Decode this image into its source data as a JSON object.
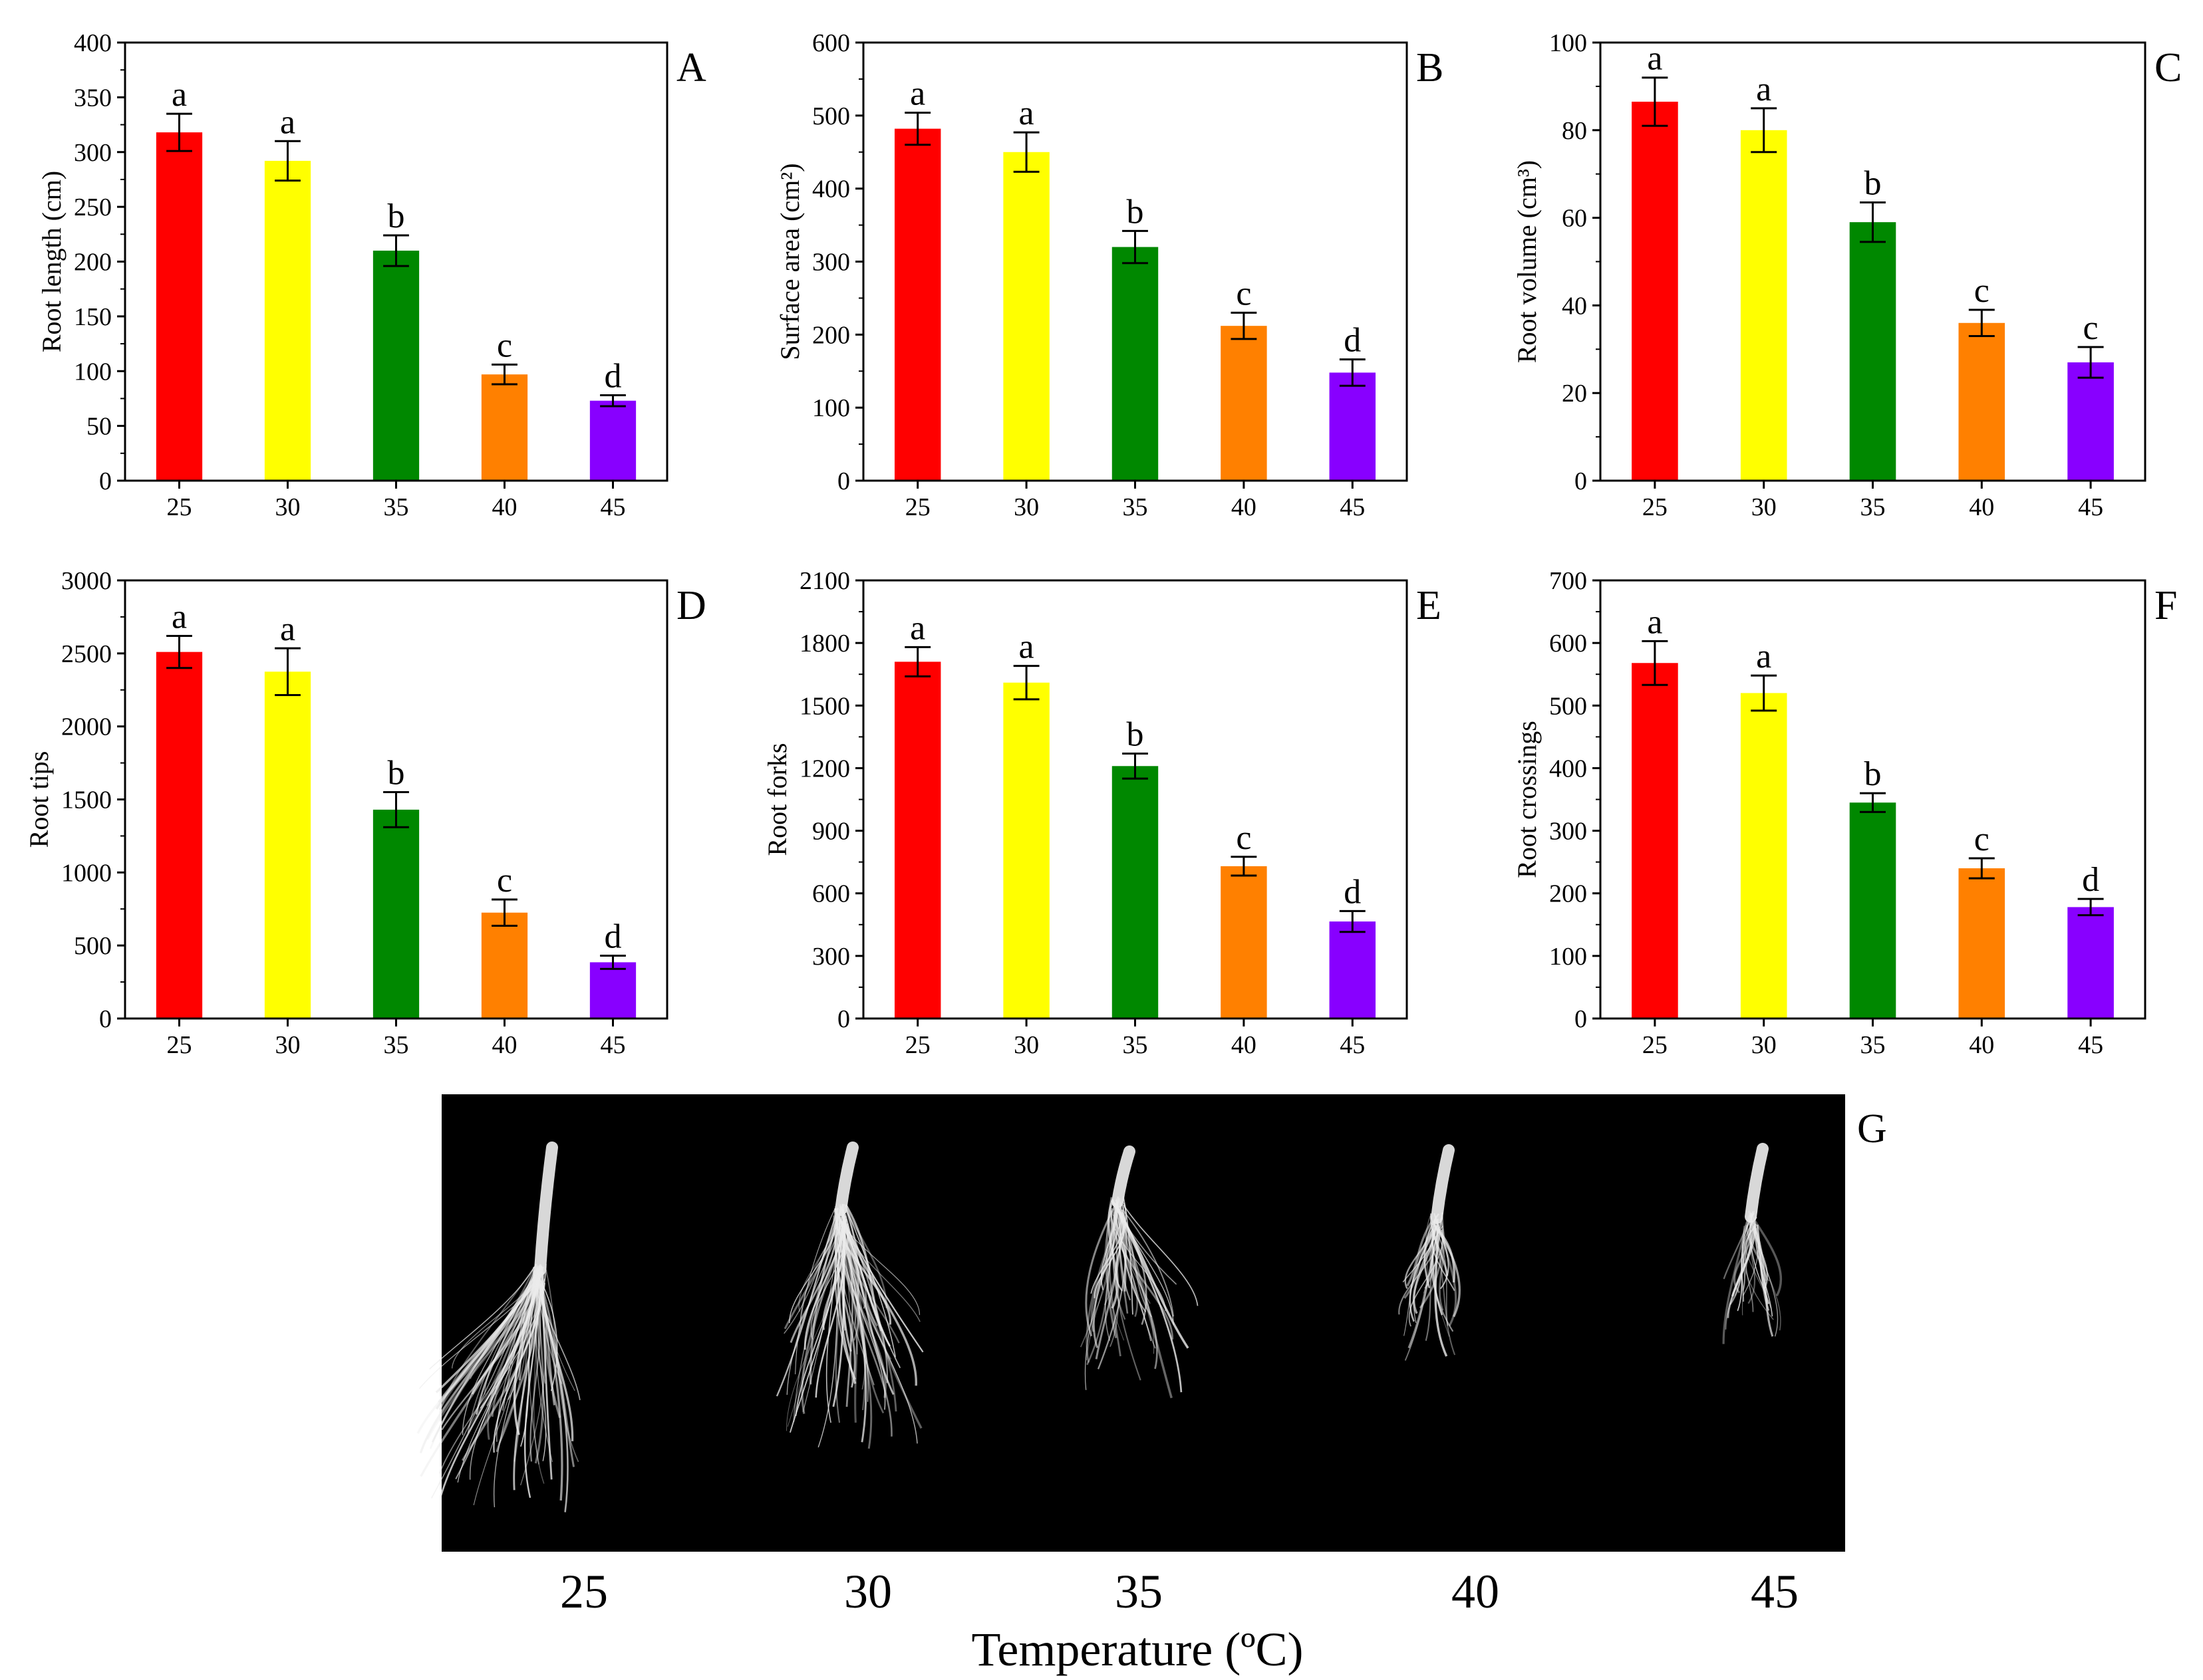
{
  "colors": [
    "#ff0000",
    "#ffff00",
    "#008800",
    "#ff8000",
    "#8800ff"
  ],
  "chart_data": [
    {
      "type": "bar",
      "panel": "A",
      "categories": [
        "25",
        "30",
        "35",
        "40",
        "45"
      ],
      "values": [
        318,
        292,
        210,
        97,
        73
      ],
      "errors": [
        17,
        18,
        14,
        9,
        5
      ],
      "letters": [
        "a",
        "a",
        "b",
        "c",
        "d"
      ],
      "ylabel": "Root length (cm)",
      "ylim": [
        0,
        400
      ],
      "yticks": [
        0,
        50,
        100,
        150,
        200,
        250,
        300,
        350,
        400
      ]
    },
    {
      "type": "bar",
      "panel": "B",
      "categories": [
        "25",
        "30",
        "35",
        "40",
        "45"
      ],
      "values": [
        482,
        450,
        320,
        212,
        148
      ],
      "errors": [
        22,
        27,
        22,
        18,
        18
      ],
      "letters": [
        "a",
        "a",
        "b",
        "c",
        "d"
      ],
      "ylabel": "Surface area (cm²)",
      "ylim": [
        0,
        600
      ],
      "yticks": [
        0,
        100,
        200,
        300,
        400,
        500,
        600
      ]
    },
    {
      "type": "bar",
      "panel": "C",
      "categories": [
        "25",
        "30",
        "35",
        "40",
        "45"
      ],
      "values": [
        86.5,
        80,
        59,
        36,
        27
      ],
      "errors": [
        5.5,
        5,
        4.5,
        3,
        3.5
      ],
      "letters": [
        "a",
        "a",
        "b",
        "c",
        "c"
      ],
      "ylabel": "Root volume (cm³)",
      "ylim": [
        0,
        100
      ],
      "yticks": [
        0,
        20,
        40,
        60,
        80,
        100
      ]
    },
    {
      "type": "bar",
      "panel": "D",
      "categories": [
        "25",
        "30",
        "35",
        "40",
        "45"
      ],
      "values": [
        2510,
        2375,
        1430,
        725,
        385
      ],
      "errors": [
        110,
        160,
        120,
        90,
        45
      ],
      "letters": [
        "a",
        "a",
        "b",
        "c",
        "d"
      ],
      "ylabel": "Root tips",
      "ylim": [
        0,
        3000
      ],
      "yticks": [
        0,
        500,
        1000,
        1500,
        2000,
        2500,
        3000
      ]
    },
    {
      "type": "bar",
      "panel": "E",
      "categories": [
        "25",
        "30",
        "35",
        "40",
        "45"
      ],
      "values": [
        1710,
        1610,
        1210,
        730,
        465
      ],
      "errors": [
        70,
        80,
        60,
        45,
        50
      ],
      "letters": [
        "a",
        "a",
        "b",
        "c",
        "d"
      ],
      "ylabel": "Root forks",
      "ylim": [
        0,
        2100
      ],
      "yticks": [
        0,
        300,
        600,
        900,
        1200,
        1500,
        1800,
        2100
      ]
    },
    {
      "type": "bar",
      "panel": "F",
      "categories": [
        "25",
        "30",
        "35",
        "40",
        "45"
      ],
      "values": [
        568,
        520,
        345,
        240,
        178
      ],
      "errors": [
        35,
        28,
        15,
        16,
        13
      ],
      "letters": [
        "a",
        "a",
        "b",
        "c",
        "d"
      ],
      "ylabel": "Root crossings",
      "ylim": [
        0,
        700
      ],
      "yticks": [
        0,
        100,
        200,
        300,
        400,
        500,
        600,
        700
      ]
    }
  ],
  "photo": {
    "panel": "G",
    "temperatures": [
      "25",
      "30",
      "35",
      "40",
      "45"
    ],
    "xlabel": "Temperature (ºC)"
  }
}
